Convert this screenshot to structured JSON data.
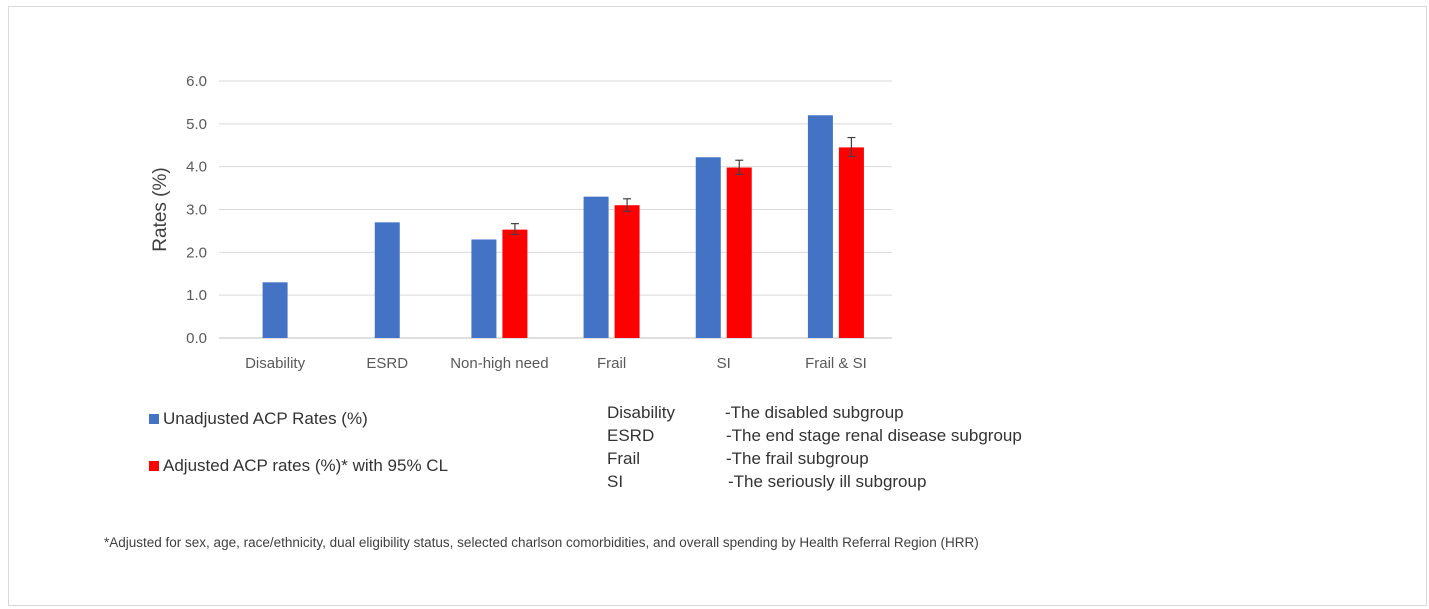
{
  "chart_data": {
    "type": "bar",
    "ylabel": "Rates (%)",
    "xlabel": "",
    "ylim": [
      0,
      6
    ],
    "yticks": [
      "0.0",
      "1.0",
      "2.0",
      "3.0",
      "4.0",
      "5.0",
      "6.0"
    ],
    "grid": true,
    "categories": [
      "Disability",
      "ESRD",
      "Non-high need",
      "Frail",
      "SI",
      "Frail & SI"
    ],
    "series": [
      {
        "name": "Unadjusted ACP Rates (%)",
        "color": "#4472c4",
        "values": [
          1.3,
          2.7,
          2.3,
          3.3,
          4.22,
          5.2
        ]
      },
      {
        "name": "Adjusted ACP rates (%)* with 95% CL",
        "color": "#ff0000",
        "values": [
          null,
          null,
          2.53,
          3.1,
          3.98,
          4.45
        ],
        "error_low": [
          null,
          null,
          2.42,
          2.96,
          3.82,
          4.24
        ],
        "error_high": [
          null,
          null,
          2.67,
          3.25,
          4.15,
          4.68
        ]
      }
    ]
  },
  "legend": {
    "unadjusted_label": "Unadjusted ACP Rates (%)",
    "adjusted_label": "Adjusted ACP rates (%)* with 95% CL"
  },
  "abbreviations": [
    {
      "key": "Disability",
      "desc": "-The disabled subgroup"
    },
    {
      "key": "ESRD",
      "desc": "-The end stage renal disease subgroup"
    },
    {
      "key": "Frail",
      "desc": "-The frail subgroup"
    },
    {
      "key": "SI",
      "desc": "-The seriously ill subgroup"
    }
  ],
  "footnote": "*Adjusted for sex, age, race/ethnicity, dual eligibility status, selected charlson comorbidities, and overall spending by Health Referral Region (HRR)"
}
